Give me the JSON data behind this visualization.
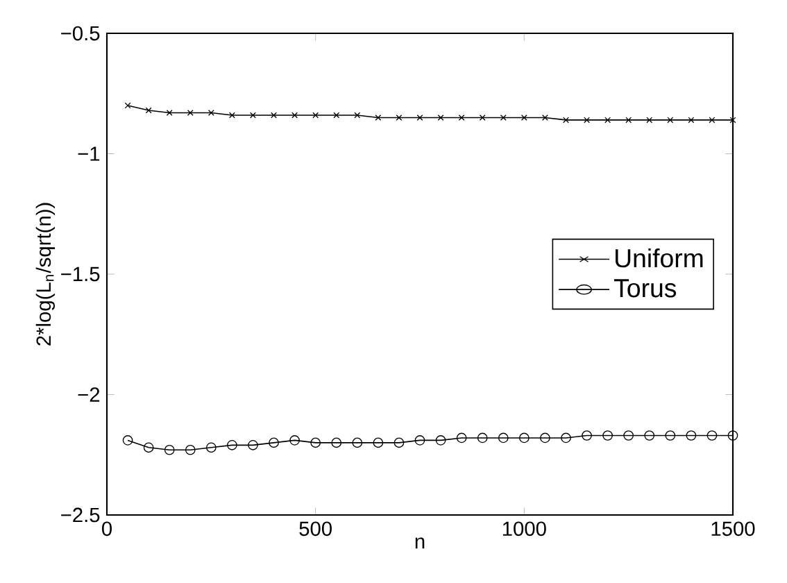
{
  "chart_data": {
    "type": "line",
    "xlabel": "n",
    "ylabel": "2*log(L$_{n}$/sqrt(n))",
    "x": [
      50,
      100,
      150,
      200,
      250,
      300,
      350,
      400,
      450,
      500,
      550,
      600,
      650,
      700,
      750,
      800,
      850,
      900,
      950,
      1000,
      1050,
      1100,
      1150,
      1200,
      1250,
      1300,
      1350,
      1400,
      1450,
      1500
    ],
    "series": [
      {
        "name": "Uniform",
        "color": "#000000",
        "marker": "cross",
        "values": [
          -0.8,
          -0.82,
          -0.83,
          -0.83,
          -0.83,
          -0.84,
          -0.84,
          -0.84,
          -0.84,
          -0.84,
          -0.84,
          -0.84,
          -0.85,
          -0.85,
          -0.85,
          -0.85,
          -0.85,
          -0.85,
          -0.85,
          -0.85,
          -0.85,
          -0.86,
          -0.86,
          -0.86,
          -0.86,
          -0.86,
          -0.86,
          -0.86,
          -0.86,
          -0.86
        ]
      },
      {
        "name": "Torus",
        "color": "#000000",
        "marker": "circle",
        "values": [
          -2.19,
          -2.22,
          -2.23,
          -2.23,
          -2.22,
          -2.21,
          -2.21,
          -2.2,
          -2.19,
          -2.2,
          -2.2,
          -2.2,
          -2.2,
          -2.2,
          -2.19,
          -2.19,
          -2.18,
          -2.18,
          -2.18,
          -2.18,
          -2.18,
          -2.18,
          -2.17,
          -2.17,
          -2.17,
          -2.17,
          -2.17,
          -2.17,
          -2.17,
          -2.17
        ]
      }
    ],
    "xlim": [
      0,
      1500
    ],
    "ylim": [
      -2.5,
      -0.5
    ],
    "xticks": [
      0,
      500,
      1000,
      1500
    ],
    "yticks": [
      {
        "value": -2.5,
        "label": "−2.5"
      },
      {
        "value": -2,
        "label": "−2"
      },
      {
        "value": -1.5,
        "label": "−1.5"
      },
      {
        "value": -1,
        "label": "−1"
      },
      {
        "value": -0.5,
        "label": "−0.5"
      }
    ],
    "grid": false,
    "legend": "right",
    "line_style": "solid"
  }
}
